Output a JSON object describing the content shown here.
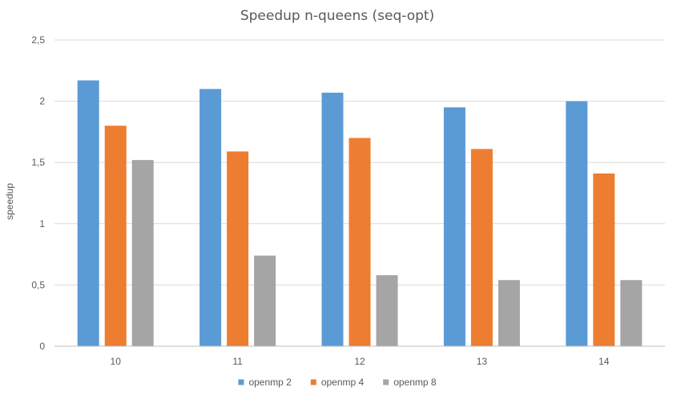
{
  "chart_data": {
    "type": "bar",
    "title": "Speedup n-queens (seq-opt)",
    "xlabel": "",
    "ylabel": "speedup",
    "categories": [
      "10",
      "11",
      "12",
      "13",
      "14"
    ],
    "series": [
      {
        "name": "openmp 2",
        "color": "#5b9bd5",
        "values": [
          2.17,
          2.1,
          2.07,
          1.95,
          2.0
        ]
      },
      {
        "name": "openmp 4",
        "color": "#ed7d31",
        "values": [
          1.8,
          1.59,
          1.7,
          1.61,
          1.41
        ]
      },
      {
        "name": "openmp 8",
        "color": "#a5a5a5",
        "values": [
          1.52,
          0.74,
          0.58,
          0.54,
          0.54
        ]
      }
    ],
    "ylim": [
      0,
      2.5
    ],
    "yticks": [
      0,
      0.5,
      1,
      1.5,
      2,
      2.5
    ],
    "ytick_labels": [
      "0",
      "0,5",
      "1",
      "1,5",
      "2",
      "2,5"
    ],
    "grid": true,
    "legend_position": "bottom"
  }
}
